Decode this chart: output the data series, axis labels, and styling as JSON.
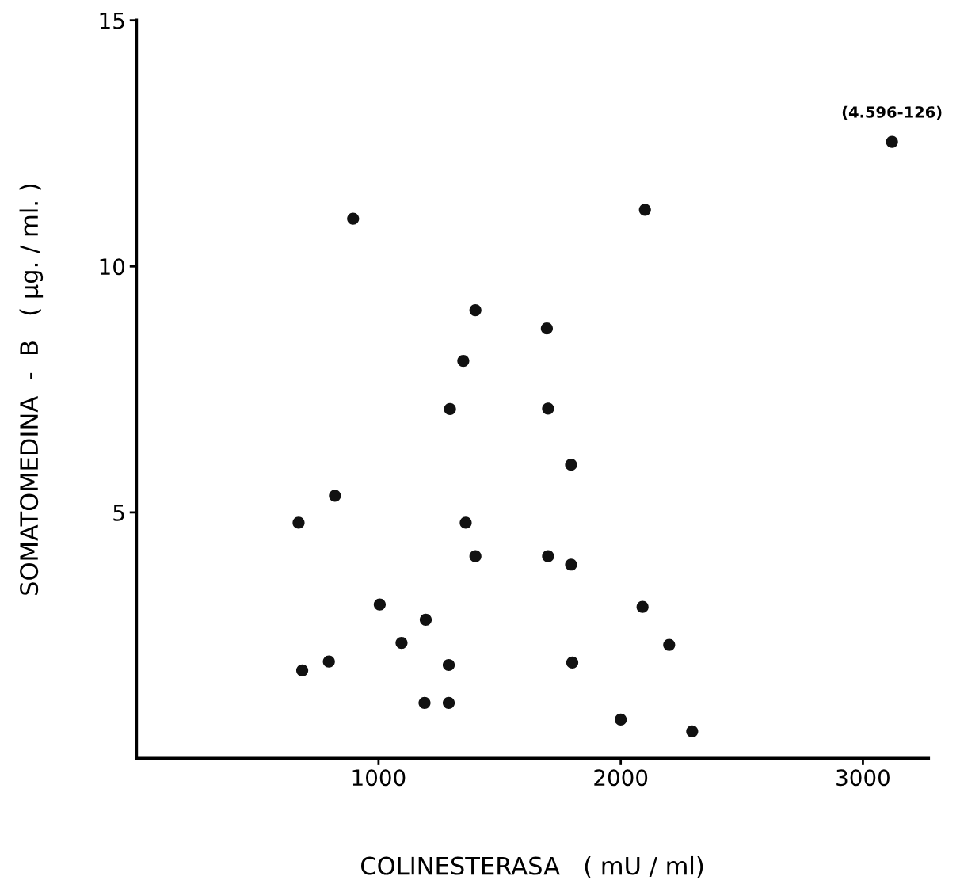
{
  "chart_data": {
    "type": "scatter",
    "xlabel": "COLINESTERASA   ( mU / ml)",
    "ylabel": "SOMATOMEDINA  -  B   ( µg. / ml. )",
    "x": [
      895,
      2100,
      3120,
      1400,
      1695,
      1350,
      1295,
      1700,
      1795,
      820,
      670,
      1360,
      1400,
      1700,
      1795,
      1005,
      2090,
      1195,
      1095,
      2200,
      795,
      685,
      1290,
      1800,
      1190,
      1290,
      2000,
      2295
    ],
    "values": [
      10.97,
      11.15,
      12.53,
      9.11,
      8.74,
      8.08,
      7.1,
      7.11,
      5.97,
      5.34,
      4.79,
      4.79,
      4.11,
      4.11,
      3.94,
      3.13,
      3.08,
      2.82,
      2.35,
      2.31,
      1.97,
      1.79,
      1.9,
      1.95,
      1.13,
      1.13,
      0.79,
      0.55
    ],
    "color": "#111111",
    "marker": "circle",
    "annotations": [
      {
        "text": "(4.596-126)",
        "x": 3120,
        "y": 12.53
      }
    ],
    "xlim": [
      0,
      3270
    ],
    "ylim": [
      0,
      15
    ],
    "xticks": [
      1000,
      2000,
      3000
    ],
    "yticks": [
      5,
      10,
      15
    ],
    "grid": false
  }
}
